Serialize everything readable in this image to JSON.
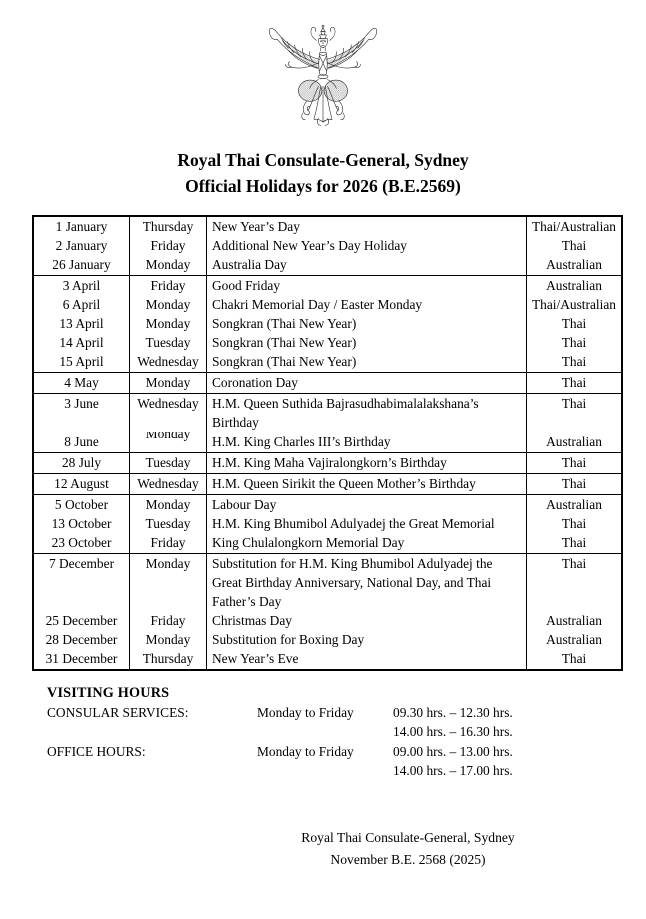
{
  "emblem": {
    "name": "thai-garuda-emblem"
  },
  "header": {
    "title_line1": "Royal Thai Consulate-General, Sydney",
    "title_line2": "Official Holidays for 2026 (B.E.2569)"
  },
  "holiday_table": {
    "groups": [
      {
        "lines": [
          {
            "date": "1 January",
            "day": "Thursday",
            "holiday": "New Year’s Day",
            "observed_by": "Thai/Australian"
          },
          {
            "date": "2 January",
            "day": "Friday",
            "holiday": "Additional New Year’s Day Holiday",
            "observed_by": "Thai"
          },
          {
            "date": "26 January",
            "day": "Monday",
            "holiday": "Australia Day",
            "observed_by": "Australian"
          }
        ]
      },
      {
        "lines": [
          {
            "date": "3 April",
            "day": "Friday",
            "holiday": "Good Friday",
            "observed_by": "Australian"
          },
          {
            "date": "6 April",
            "day": "Monday",
            "holiday": "Chakri Memorial Day / Easter Monday",
            "observed_by": "Thai/Australian"
          },
          {
            "date": "13 April",
            "day": "Monday",
            "holiday": "Songkran (Thai New Year)",
            "observed_by": "Thai"
          },
          {
            "date": "14 April",
            "day": "Tuesday",
            "holiday": "Songkran (Thai New Year)",
            "observed_by": "Thai"
          },
          {
            "date": "15 April",
            "day": "Wednesday",
            "holiday": "Songkran (Thai New Year)",
            "observed_by": "Thai"
          }
        ]
      },
      {
        "lines": [
          {
            "date": "4 May",
            "day": "Monday",
            "holiday": "Coronation Day",
            "observed_by": "Thai"
          }
        ]
      },
      {
        "lines": [
          {
            "date": "3 June",
            "day": "Wednesday",
            "holiday": "H.M. Queen Suthida Bajrasudhabimalalakshana’s",
            "observed_by": "Thai"
          },
          {
            "date": "",
            "day": "",
            "holiday": "Birthday",
            "observed_by": ""
          },
          {
            "date": "8 June",
            "day": "Monday",
            "holiday": "H.M. King Charles III’s Birthday",
            "observed_by": "Australian",
            "day_raised": true
          }
        ]
      },
      {
        "lines": [
          {
            "date": "28 July",
            "day": "Tuesday",
            "holiday": "H.M. King Maha Vajiralongkorn’s Birthday",
            "observed_by": "Thai"
          }
        ]
      },
      {
        "lines": [
          {
            "date": "12 August",
            "day": "Wednesday",
            "holiday": "H.M. Queen Sirikit the Queen Mother’s Birthday",
            "observed_by": "Thai"
          }
        ]
      },
      {
        "lines": [
          {
            "date": "5 October",
            "day": "Monday",
            "holiday": "Labour Day",
            "observed_by": "Australian"
          },
          {
            "date": "13 October",
            "day": "Tuesday",
            "holiday": "H.M. King Bhumibol Adulyadej the Great Memorial",
            "observed_by": "Thai"
          },
          {
            "date": "23 October",
            "day": "Friday",
            "holiday": "King Chulalongkorn Memorial Day",
            "observed_by": "Thai"
          }
        ]
      },
      {
        "lines": [
          {
            "date": "7 December",
            "day": "Monday",
            "holiday": "Substitution for H.M. King Bhumibol Adulyadej the",
            "observed_by": "Thai"
          },
          {
            "date": "",
            "day": "",
            "holiday": "Great Birthday Anniversary, National Day, and Thai",
            "observed_by": ""
          },
          {
            "date": "",
            "day": "",
            "holiday": "Father’s Day",
            "observed_by": ""
          },
          {
            "date": "25 December",
            "day": "Friday",
            "holiday": "Christmas Day",
            "observed_by": "Australian"
          },
          {
            "date": "28 December",
            "day": "Monday",
            "holiday": "Substitution for Boxing Day",
            "observed_by": "Australian"
          },
          {
            "date": "31 December",
            "day": "Thursday",
            "holiday": "New Year’s Eve",
            "observed_by": "Thai"
          }
        ]
      }
    ]
  },
  "visiting_hours": {
    "heading": "VISITING HOURS",
    "entries": [
      {
        "label": "CONSULAR SERVICES:",
        "days": "Monday to Friday",
        "times": [
          "09.30 hrs. – 12.30 hrs.",
          "14.00 hrs. – 16.30 hrs."
        ]
      },
      {
        "label": "OFFICE HOURS:",
        "days": "Monday to Friday",
        "times": [
          "09.00 hrs. – 13.00 hrs.",
          "14.00 hrs. – 17.00 hrs."
        ]
      }
    ]
  },
  "footer": {
    "line1": "Royal Thai Consulate-General, Sydney",
    "line2": "November B.E. 2568 (2025)"
  }
}
